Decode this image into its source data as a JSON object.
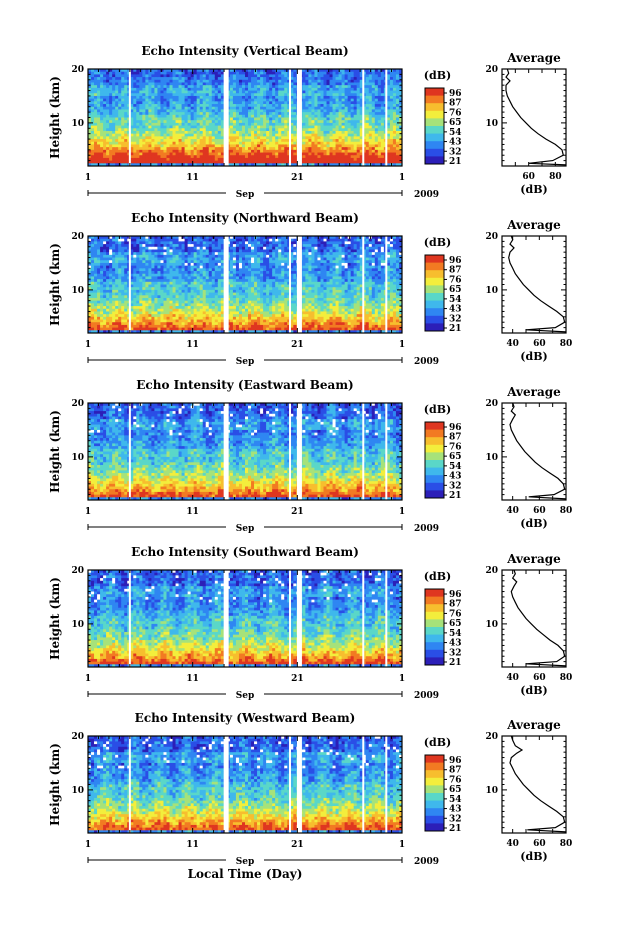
{
  "chart_data": [
    {
      "type": "heatmap",
      "title": "Echo Intensity (Vertical Beam)",
      "ylabel": "Height (km)",
      "xlabel_month": "Sep",
      "year": "2009",
      "x_ticks": [
        "1",
        "11",
        "21",
        "1"
      ],
      "y_ticks": [
        "10",
        "20"
      ],
      "ylim": [
        2,
        20
      ],
      "colorbar": {
        "unit": "(dB)",
        "ticks": [
          "96",
          "87",
          "76",
          "65",
          "54",
          "43",
          "32",
          "21"
        ]
      },
      "average_panel": {
        "title": "Average",
        "xlabel": "(dB)",
        "x_ticks": [
          "60",
          "80"
        ],
        "xlim": [
          40,
          88
        ],
        "profile": [
          [
            88,
            2.2
          ],
          [
            60,
            2.5
          ],
          [
            78,
            3
          ],
          [
            86,
            4
          ],
          [
            85,
            5
          ],
          [
            80,
            6
          ],
          [
            73,
            7
          ],
          [
            67,
            8
          ],
          [
            62,
            9
          ],
          [
            58,
            10
          ],
          [
            54,
            11
          ],
          [
            51,
            12
          ],
          [
            48,
            13
          ],
          [
            46,
            14
          ],
          [
            44,
            15
          ],
          [
            43,
            16
          ],
          [
            43,
            17
          ],
          [
            46,
            17.8
          ],
          [
            43,
            18.5
          ],
          [
            45,
            19.2
          ],
          [
            44,
            20
          ]
        ]
      },
      "data_gaps_day": [
        5,
        14.2,
        20.3,
        21.2,
        27.3,
        29.5
      ]
    },
    {
      "type": "heatmap",
      "title": "Echo Intensity (Northward Beam)",
      "ylabel": "Height (km)",
      "xlabel_month": "Sep",
      "year": "2009",
      "x_ticks": [
        "1",
        "11",
        "21",
        "1"
      ],
      "y_ticks": [
        "10",
        "20"
      ],
      "ylim": [
        2,
        20
      ],
      "colorbar": {
        "unit": "(dB)",
        "ticks": [
          "96",
          "87",
          "76",
          "65",
          "54",
          "43",
          "32",
          "21"
        ]
      },
      "average_panel": {
        "title": "Average",
        "xlabel": "(dB)",
        "x_ticks": [
          "40",
          "60",
          "80"
        ],
        "xlim": [
          32,
          80
        ],
        "profile": [
          [
            80,
            2.2
          ],
          [
            50,
            2.6
          ],
          [
            72,
            3
          ],
          [
            79,
            4
          ],
          [
            78,
            5
          ],
          [
            73,
            6
          ],
          [
            67,
            7
          ],
          [
            61,
            8
          ],
          [
            56,
            9
          ],
          [
            52,
            10
          ],
          [
            48,
            11
          ],
          [
            45,
            12
          ],
          [
            42,
            13
          ],
          [
            40,
            14
          ],
          [
            38,
            15
          ],
          [
            37,
            16
          ],
          [
            38,
            17
          ],
          [
            41,
            17.8
          ],
          [
            38,
            18.5
          ],
          [
            40,
            19.3
          ],
          [
            39,
            20
          ]
        ]
      },
      "data_gaps_day": [
        5,
        14.2,
        20.3,
        21.2,
        27.3,
        29.5
      ]
    },
    {
      "type": "heatmap",
      "title": "Echo Intensity (Eastward Beam)",
      "ylabel": "Height (km)",
      "xlabel_month": "Sep",
      "year": "2009",
      "x_ticks": [
        "1",
        "11",
        "21",
        "1"
      ],
      "y_ticks": [
        "10",
        "20"
      ],
      "ylim": [
        2,
        20
      ],
      "colorbar": {
        "unit": "(dB)",
        "ticks": [
          "96",
          "87",
          "76",
          "65",
          "54",
          "43",
          "32",
          "21"
        ]
      },
      "average_panel": {
        "title": "Average",
        "xlabel": "(dB)",
        "x_ticks": [
          "40",
          "60",
          "80"
        ],
        "xlim": [
          32,
          80
        ],
        "profile": [
          [
            80,
            2.2
          ],
          [
            52,
            2.6
          ],
          [
            71,
            3
          ],
          [
            79,
            4
          ],
          [
            78,
            5
          ],
          [
            74,
            6
          ],
          [
            68,
            7
          ],
          [
            62,
            8
          ],
          [
            57,
            9
          ],
          [
            53,
            10
          ],
          [
            49,
            11
          ],
          [
            46,
            12
          ],
          [
            43,
            13
          ],
          [
            41,
            14
          ],
          [
            39,
            15
          ],
          [
            38,
            16
          ],
          [
            40,
            17
          ],
          [
            42,
            17.8
          ],
          [
            39,
            18.5
          ],
          [
            41,
            19.3
          ],
          [
            40,
            20
          ]
        ]
      },
      "data_gaps_day": [
        5,
        14.2,
        20.3,
        21.2,
        27.3,
        29.5
      ]
    },
    {
      "type": "heatmap",
      "title": "Echo Intensity (Southward Beam)",
      "ylabel": "Height (km)",
      "xlabel_month": "Sep",
      "year": "2009",
      "x_ticks": [
        "1",
        "11",
        "21",
        "1"
      ],
      "y_ticks": [
        "10",
        "20"
      ],
      "ylim": [
        2,
        20
      ],
      "colorbar": {
        "unit": "(dB)",
        "ticks": [
          "96",
          "87",
          "76",
          "65",
          "54",
          "43",
          "32",
          "21"
        ]
      },
      "average_panel": {
        "title": "Average",
        "xlabel": "(dB)",
        "x_ticks": [
          "40",
          "60",
          "80"
        ],
        "xlim": [
          32,
          80
        ],
        "profile": [
          [
            80,
            2.2
          ],
          [
            50,
            2.6
          ],
          [
            73,
            3
          ],
          [
            79,
            4
          ],
          [
            78,
            5
          ],
          [
            74,
            6
          ],
          [
            68,
            7
          ],
          [
            63,
            8
          ],
          [
            58,
            9
          ],
          [
            54,
            10
          ],
          [
            50,
            11
          ],
          [
            47,
            12
          ],
          [
            44,
            13
          ],
          [
            42,
            14
          ],
          [
            40,
            15
          ],
          [
            39,
            16
          ],
          [
            41,
            17
          ],
          [
            43,
            17.8
          ],
          [
            40,
            18.5
          ],
          [
            42,
            19.3
          ],
          [
            41,
            20
          ]
        ]
      },
      "data_gaps_day": [
        5,
        14.2,
        20.3,
        21.2,
        27.3,
        29.5
      ]
    },
    {
      "type": "heatmap",
      "title": "Echo Intensity (Westward Beam)",
      "ylabel": "Height (km)",
      "xlabel_month": "Sep",
      "year": "2009",
      "xlabel": "Local Time (Day)",
      "x_ticks": [
        "1",
        "11",
        "21",
        "1"
      ],
      "y_ticks": [
        "10",
        "20"
      ],
      "ylim": [
        2,
        20
      ],
      "colorbar": {
        "unit": "(dB)",
        "ticks": [
          "96",
          "87",
          "76",
          "65",
          "54",
          "43",
          "32",
          "21"
        ]
      },
      "average_panel": {
        "title": "Average",
        "xlabel": "(dB)",
        "x_ticks": [
          "40",
          "60",
          "80"
        ],
        "xlim": [
          32,
          80
        ],
        "profile": [
          [
            80,
            2.2
          ],
          [
            51,
            2.6
          ],
          [
            72,
            3
          ],
          [
            79,
            4
          ],
          [
            78,
            5
          ],
          [
            73,
            6
          ],
          [
            67,
            7
          ],
          [
            61,
            8
          ],
          [
            56,
            9
          ],
          [
            52,
            10
          ],
          [
            48,
            11
          ],
          [
            45,
            12
          ],
          [
            42,
            13
          ],
          [
            40,
            14
          ],
          [
            38,
            15
          ],
          [
            39,
            16
          ],
          [
            43,
            16.8
          ],
          [
            47,
            17.4
          ],
          [
            42,
            18.2
          ],
          [
            40,
            19.2
          ],
          [
            39,
            20
          ]
        ]
      },
      "data_gaps_day": [
        5,
        14.2,
        20.3,
        21.2,
        27.3,
        29.5
      ]
    }
  ],
  "colorscale": [
    "#2c1fb8",
    "#2a4ee6",
    "#2f86f2",
    "#3fb8ec",
    "#5ad7c8",
    "#a6e27a",
    "#f3ee3c",
    "#f7be2e",
    "#f27a22",
    "#df3620"
  ]
}
